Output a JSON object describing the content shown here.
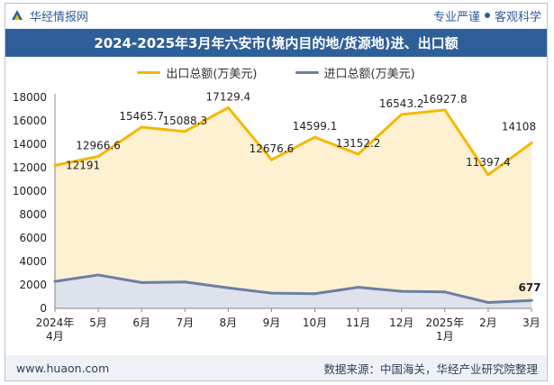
{
  "header": {
    "brand": "华经情报网",
    "slogan_a": "专业严谨",
    "slogan_b": "客观科学"
  },
  "footer": {
    "website": "www.huaon.com",
    "source": "数据来源：中国海关，华经产业研究院整理"
  },
  "colors": {
    "export_line": "#f5b800",
    "export_fill": "#fdf1d2",
    "import_line": "#6d7ea3",
    "import_fill": "#dde2ec",
    "title_bg": "#2f5f99"
  },
  "chart_data": {
    "type": "area",
    "title": "2024-2025年3月年六安市(境内目的地/货源地)进、出口额",
    "categories": [
      "2024年\n4月",
      "5月",
      "6月",
      "7月",
      "8月",
      "9月",
      "10月",
      "11月",
      "12月",
      "2025年\n1月",
      "2月",
      "3月"
    ],
    "series": [
      {
        "name": "出口总额(万美元)",
        "values": [
          12191,
          12966.6,
          15465.7,
          15088.3,
          17129.4,
          12676.6,
          14599.1,
          13152.2,
          16543.2,
          16927.8,
          11397.4,
          14108
        ],
        "labels": [
          "12191",
          "12966.6",
          "15465.7",
          "15088.3",
          "17129.4",
          "12676.6",
          "14599.1",
          "13152.2",
          "16543.2",
          "16927.8",
          "11397.4",
          "14108"
        ]
      },
      {
        "name": "进口总额(万美元)",
        "values": [
          2300,
          2850,
          2200,
          2250,
          1750,
          1300,
          1250,
          1800,
          1450,
          1400,
          500,
          677
        ],
        "labels": [
          "",
          "",
          "",
          "",
          "",
          "",
          "",
          "",
          "",
          "",
          "",
          "677"
        ]
      }
    ],
    "yticks": [
      0,
      2000,
      4000,
      6000,
      8000,
      10000,
      12000,
      14000,
      16000,
      18000
    ],
    "ylim": [
      0,
      18000
    ],
    "grid": false,
    "legend_position": "top-center"
  }
}
